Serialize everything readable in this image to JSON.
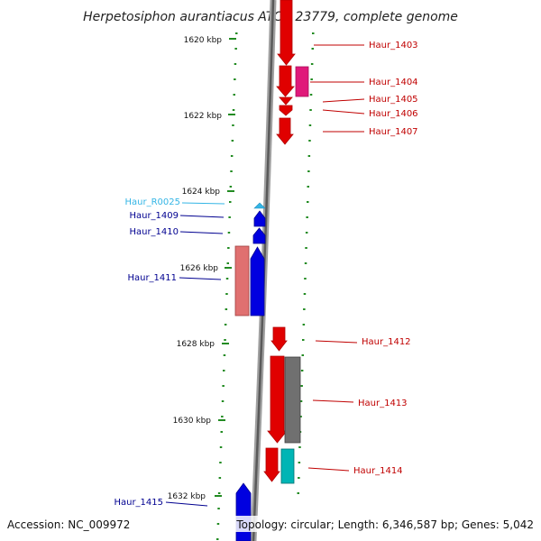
{
  "title": "Herpetosiphon aurantiacus ATCC 23779, complete genome",
  "accession": "Accession: NC_009972",
  "topology": "Topology: circular; Length: 6,346,587 bp; Genes: 5,042",
  "colors": {
    "forward": "#e00000",
    "reverse": "#0000e0",
    "rna": "#33b5e5",
    "pink": "#e0197a",
    "salmon": "#e07070",
    "grey": "#707070",
    "teal": "#00b5b5",
    "tick": "#228b22",
    "label_forward": "#c00000",
    "label_reverse": "#000090",
    "label_rna": "#33b5e5"
  },
  "ticks": [
    {
      "label": "1620 kbp"
    },
    {
      "label": "1622 kbp"
    },
    {
      "label": "1624 kbp"
    },
    {
      "label": "1626 kbp"
    },
    {
      "label": "1628 kbp"
    },
    {
      "label": "1630 kbp"
    },
    {
      "label": "1632 kbp"
    }
  ],
  "genes": [
    {
      "name": "Haur_1403",
      "strand": "forward"
    },
    {
      "name": "Haur_1404",
      "strand": "forward"
    },
    {
      "name": "Haur_1405",
      "strand": "forward"
    },
    {
      "name": "Haur_1406",
      "strand": "forward"
    },
    {
      "name": "Haur_1407",
      "strand": "forward"
    },
    {
      "name": "Haur_R0025",
      "strand": "rna"
    },
    {
      "name": "Haur_1409",
      "strand": "reverse"
    },
    {
      "name": "Haur_1410",
      "strand": "reverse"
    },
    {
      "name": "Haur_1411",
      "strand": "reverse"
    },
    {
      "name": "Haur_1412",
      "strand": "forward"
    },
    {
      "name": "Haur_1413",
      "strand": "forward"
    },
    {
      "name": "Haur_1414",
      "strand": "forward"
    },
    {
      "name": "Haur_1415",
      "strand": "reverse"
    }
  ]
}
